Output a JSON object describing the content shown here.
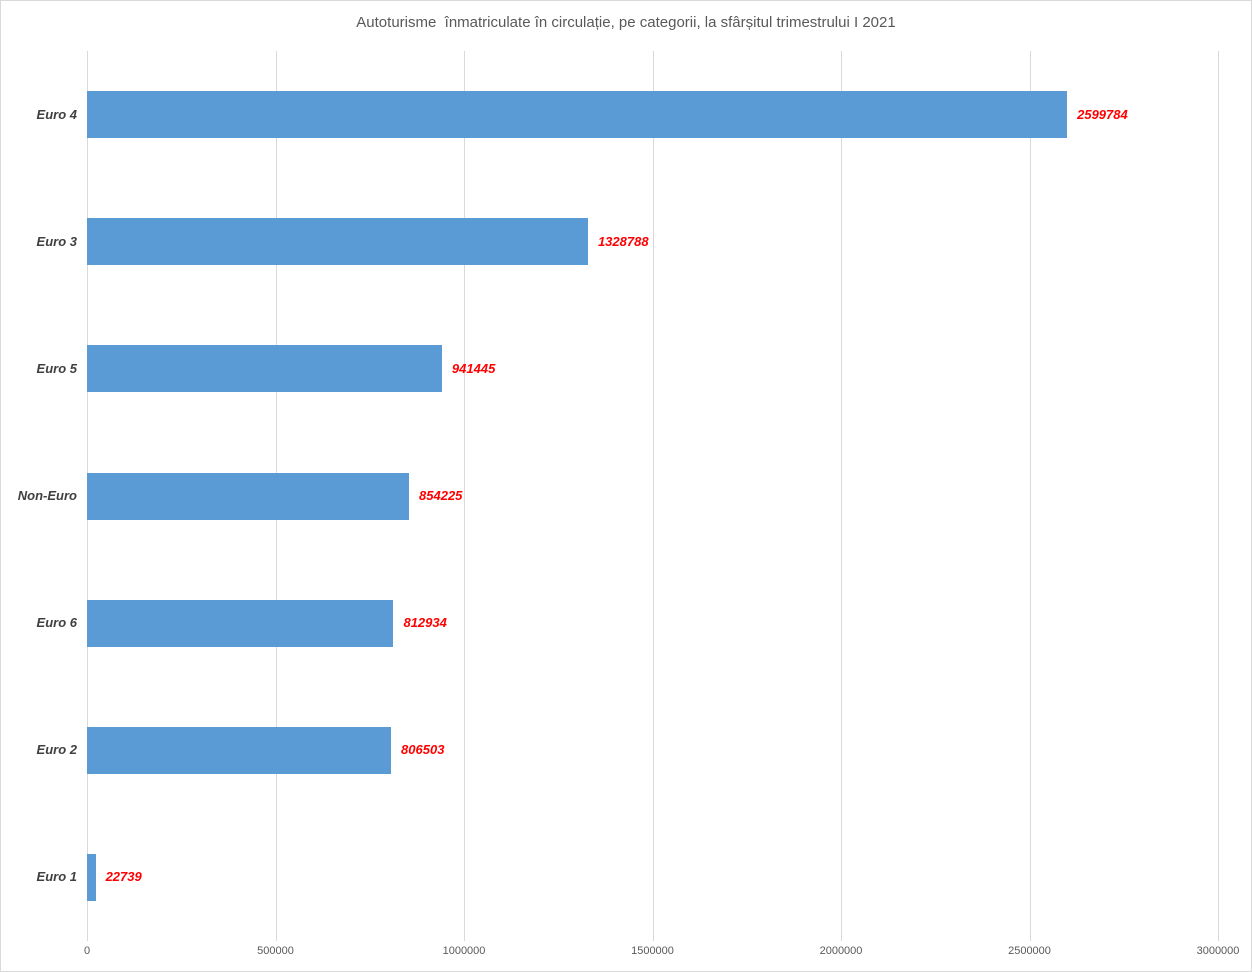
{
  "chart_data": {
    "type": "bar",
    "orientation": "horizontal",
    "title": "Autoturisme  înmatriculate în circulație, pe categorii, la sfârșitul trimestrului I 2021",
    "categories": [
      "Euro 4",
      "Euro 3",
      "Euro 5",
      "Non-Euro",
      "Euro 6",
      "Euro 2",
      "Euro 1"
    ],
    "values": [
      2599784,
      1328788,
      941445,
      854225,
      812934,
      806503,
      22739
    ],
    "value_labels": [
      "2599784",
      "1328788",
      "941445",
      "854225",
      "812934",
      "806503",
      "22739"
    ],
    "xlabel": "",
    "ylabel": "",
    "xlim": [
      0,
      3000000
    ],
    "x_ticks": [
      0,
      500000,
      1000000,
      1500000,
      2000000,
      2500000,
      3000000
    ],
    "x_tick_labels": [
      "0",
      "500000",
      "1000000",
      "1500000",
      "2000000",
      "2500000",
      "3000000"
    ],
    "grid": true,
    "legend": false,
    "colors": {
      "bar": "#5b9bd5",
      "value_label": "#ff0000",
      "category_label": "#404040",
      "axis_tick_label": "#595959",
      "gridline": "#d9d9d9",
      "title": "#595959",
      "chart_border": "#d9d9d9",
      "background": "#ffffff"
    }
  }
}
